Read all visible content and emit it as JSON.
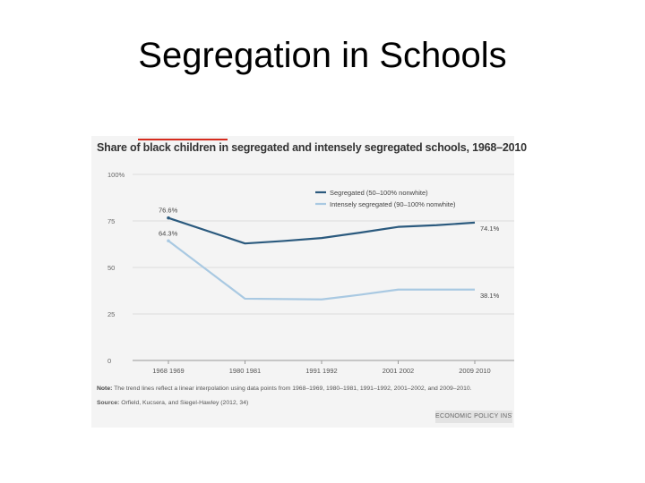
{
  "slide": {
    "title": "Segregation in Schools"
  },
  "chart_data": {
    "type": "line",
    "title": "Share of black children in segregated and intensely segregated schools, 1968–2010",
    "categories": [
      "1968-1969",
      "1980-1981",
      "1991-1992",
      "2001-2002",
      "2009-2010"
    ],
    "category_labels": [
      "1968 1969",
      "1980 1981",
      "1991 1992",
      "2001 2002",
      "2009 2010"
    ],
    "y_ticks": [
      "0",
      "25",
      "50",
      "75",
      "100%"
    ],
    "ylim": [
      0,
      100
    ],
    "series": [
      {
        "name": "Segregated (50–100% nonwhite)",
        "color": "#2b5a7e",
        "x": [
          0,
          1,
          1.5,
          2,
          2.5,
          3,
          3.5,
          4
        ],
        "values": [
          76.6,
          62.9,
          64.2,
          65.8,
          68.7,
          71.8,
          72.7,
          74.1
        ],
        "start_label": "76.6%",
        "end_label": "74.1%"
      },
      {
        "name": "Intensely segregated (90–100% nonwhite)",
        "color": "#a9c9e2",
        "x": [
          0,
          1,
          2,
          2.5,
          3,
          4
        ],
        "values": [
          64.3,
          33.2,
          32.8,
          35.3,
          38.1,
          38.1
        ],
        "start_label": "64.3%",
        "end_label": "38.1%"
      }
    ]
  },
  "note": {
    "label": "Note:",
    "text": "The trend lines reflect a linear interpolation using data points from 1968–1969, 1980–1981, 1991–1992, 2001–2002, and 2009–2010."
  },
  "source": {
    "label": "Source:",
    "text": "Orfield, Kucsera, and Siegel-Hawley (2012, 34)"
  },
  "branding": "ECONOMIC POLICY INSTITUTE",
  "colors": {
    "panel_bg": "#f4f4f4",
    "accent_red": "#d52b1e",
    "text": "#333333"
  }
}
